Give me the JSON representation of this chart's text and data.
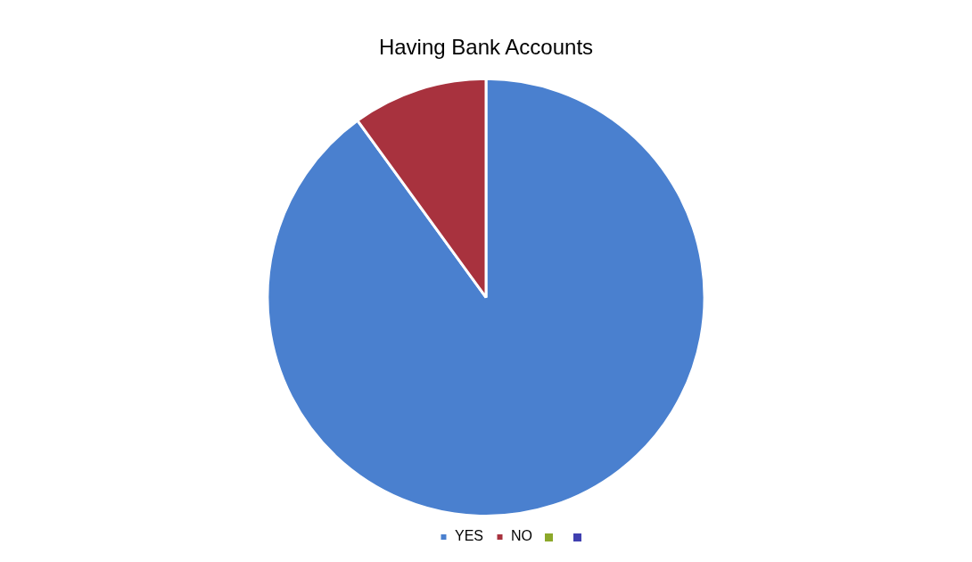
{
  "chart_data": {
    "type": "pie",
    "title": "Having Bank Accounts",
    "categories": [
      "YES",
      "NO"
    ],
    "values": [
      90,
      10
    ],
    "colors": [
      "#4a80cf",
      "#a8323e"
    ],
    "legend": "bottom"
  }
}
